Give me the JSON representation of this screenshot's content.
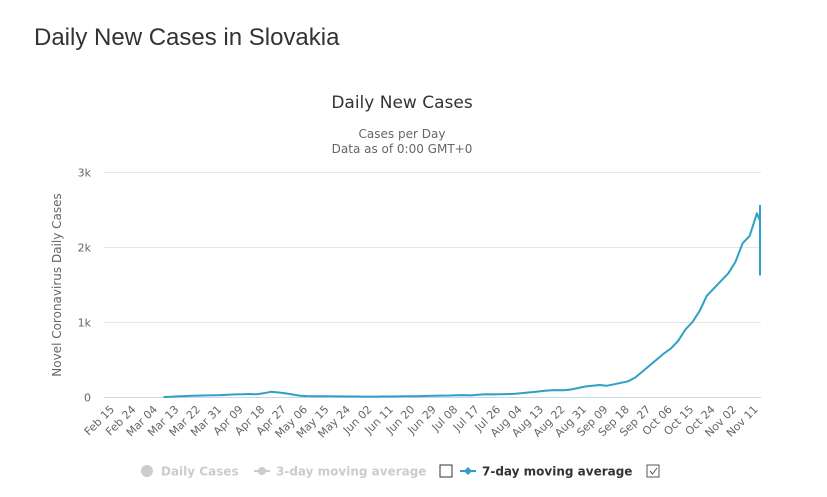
{
  "page": {
    "title": "Daily New Cases in Slovakia"
  },
  "colors": {
    "series": "#2f9fc5",
    "grid": "#e6e6e6",
    "axis": "#ccd6eb",
    "legend_hidden": "#cccccc",
    "legend_active": "#333333"
  },
  "chart_data": {
    "type": "line",
    "title": "Daily New Cases",
    "subtitle_line1": "Cases per Day",
    "subtitle_line2": "Data as of 0:00 GMT+0",
    "ylabel": "Novel Coronavirus Daily Cases",
    "xlabel": "",
    "ylim": [
      0,
      3000
    ],
    "y_ticks": [
      0,
      1000,
      2000,
      3000
    ],
    "y_tick_labels": [
      "0",
      "1k",
      "2k",
      "3k"
    ],
    "x_tick_labels": [
      "Feb 15",
      "Feb 24",
      "Mar 04",
      "Mar 13",
      "Mar 22",
      "Mar 31",
      "Apr 09",
      "Apr 18",
      "Apr 27",
      "May 06",
      "May 15",
      "May 24",
      "Jun 02",
      "Jun 11",
      "Jun 20",
      "Jun 29",
      "Jul 08",
      "Jul 17",
      "Jul 26",
      "Aug 04",
      "Aug 13",
      "Aug 22",
      "Aug 31",
      "Sep 09",
      "Sep 18",
      "Sep 27",
      "Oct 06",
      "Oct 15",
      "Oct 24",
      "Nov 02",
      "Nov 11"
    ],
    "x_start_day_index": 0,
    "x_days_per_tick": 9,
    "grid": true,
    "legend_position": "bottom",
    "legend": [
      {
        "label": "Daily Cases",
        "icon": "circle-marker-icon",
        "active": false
      },
      {
        "label": "3-day moving average",
        "icon": "line-circle-marker-icon",
        "active": false
      },
      {
        "label": "7-day moving average",
        "icon": "line-diamond-marker-icon",
        "active": true
      }
    ],
    "series": [
      {
        "name": "7-day moving average",
        "day_start": 22,
        "day_step": 3,
        "values": [
          0,
          3,
          8,
          12,
          16,
          18,
          22,
          24,
          26,
          30,
          34,
          36,
          40,
          36,
          50,
          70,
          62,
          50,
          35,
          18,
          12,
          10,
          9,
          9,
          8,
          8,
          7,
          7,
          6,
          6,
          6,
          7,
          7,
          8,
          9,
          10,
          12,
          14,
          16,
          18,
          20,
          24,
          26,
          22,
          30,
          36,
          34,
          36,
          38,
          42,
          50,
          60,
          68,
          80,
          88,
          92,
          90,
          100,
          120,
          140,
          150,
          160,
          150,
          170,
          190,
          210,
          260,
          340,
          420,
          500,
          580,
          650,
          750,
          900,
          1000,
          1150,
          1350,
          1450,
          1550,
          1650,
          1800,
          2050,
          2150,
          2450,
          2350,
          2450,
          2550,
          2300,
          2250,
          1950,
          1800,
          1850,
          1620
        ]
      }
    ]
  }
}
